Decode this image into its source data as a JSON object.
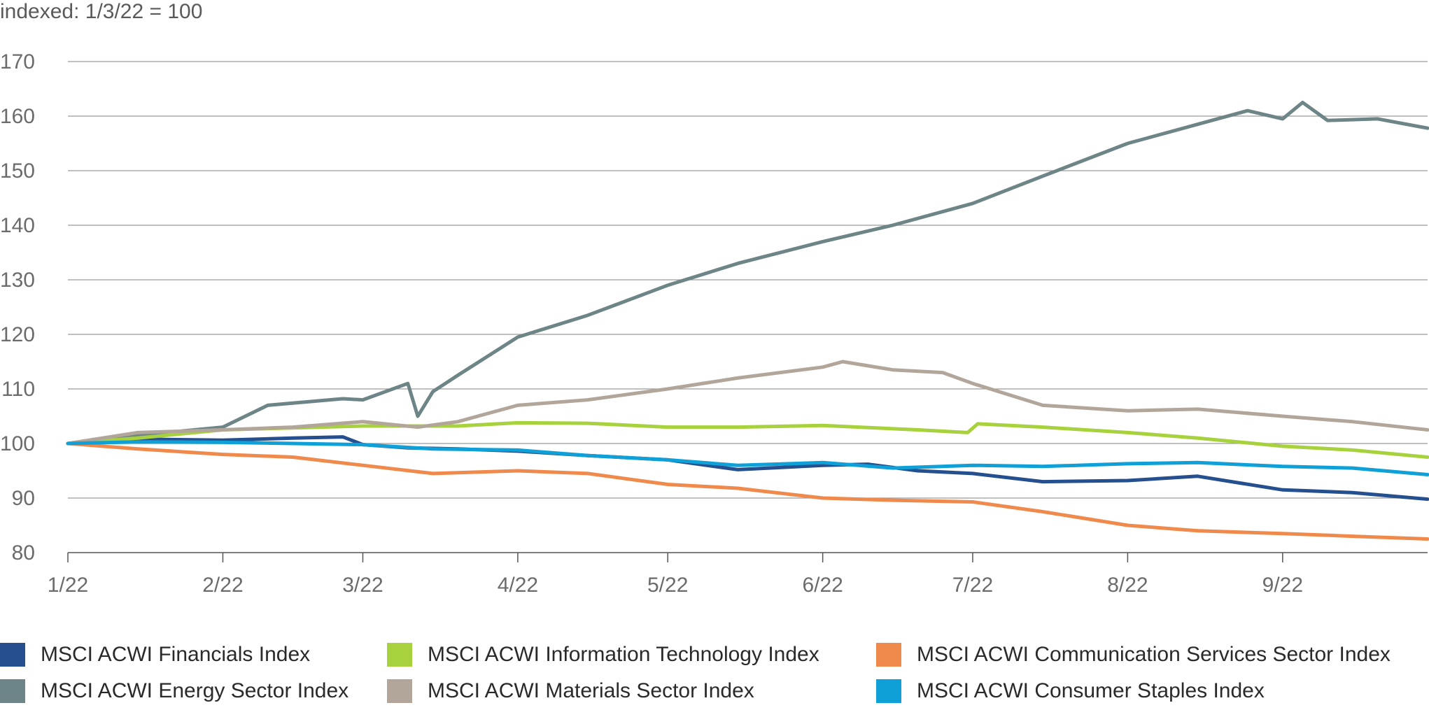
{
  "chart_data": {
    "type": "line",
    "y_axis_note": "indexed: 1/3/22 = 100",
    "title": "",
    "xlabel": "",
    "ylabel": "",
    "ylim": [
      80,
      170
    ],
    "y_ticks": [
      80,
      90,
      100,
      110,
      120,
      130,
      140,
      150,
      160,
      170
    ],
    "x_ticks": [
      {
        "label": "1/22",
        "x": "2022-01-01"
      },
      {
        "label": "2/22",
        "x": "2022-02-01"
      },
      {
        "label": "3/22",
        "x": "2022-03-01"
      },
      {
        "label": "4/22",
        "x": "2022-04-01"
      },
      {
        "label": "5/22",
        "x": "2022-05-01"
      },
      {
        "label": "6/22",
        "x": "2022-06-01"
      },
      {
        "label": "7/22",
        "x": "2022-07-01"
      },
      {
        "label": "8/22",
        "x": "2022-08-01"
      },
      {
        "label": "9/22",
        "x": "2022-09-01"
      }
    ],
    "xlim": [
      "2022-01-01",
      "2022-09-30"
    ],
    "grid": "horizontal",
    "legend_position": "bottom",
    "series": [
      {
        "name": "MSCI ACWI Financials Index",
        "color": "#254f8e",
        "points": [
          [
            "2022-01-01",
            100
          ],
          [
            "2022-01-15",
            100.8
          ],
          [
            "2022-02-01",
            100.6
          ],
          [
            "2022-02-15",
            101.0
          ],
          [
            "2022-02-25",
            101.2
          ],
          [
            "2022-03-01",
            99.8
          ],
          [
            "2022-03-10",
            99.2
          ],
          [
            "2022-03-20",
            99.0
          ],
          [
            "2022-04-01",
            98.6
          ],
          [
            "2022-04-15",
            97.8
          ],
          [
            "2022-05-01",
            97.0
          ],
          [
            "2022-05-15",
            95.2
          ],
          [
            "2022-06-01",
            96.0
          ],
          [
            "2022-06-10",
            96.2
          ],
          [
            "2022-06-20",
            95.0
          ],
          [
            "2022-07-01",
            94.5
          ],
          [
            "2022-07-15",
            93.0
          ],
          [
            "2022-08-01",
            93.2
          ],
          [
            "2022-08-15",
            94.0
          ],
          [
            "2022-09-01",
            91.5
          ],
          [
            "2022-09-15",
            91.0
          ],
          [
            "2022-09-30",
            89.8
          ]
        ]
      },
      {
        "name": "MSCI ACWI Energy Sector Index",
        "color": "#6e8588",
        "points": [
          [
            "2022-01-01",
            100
          ],
          [
            "2022-01-15",
            101.5
          ],
          [
            "2022-02-01",
            103.0
          ],
          [
            "2022-02-10",
            107.0
          ],
          [
            "2022-02-25",
            108.2
          ],
          [
            "2022-03-01",
            108.0
          ],
          [
            "2022-03-10",
            111.0
          ],
          [
            "2022-03-12",
            105.0
          ],
          [
            "2022-03-15",
            109.5
          ],
          [
            "2022-03-20",
            112.5
          ],
          [
            "2022-04-01",
            119.5
          ],
          [
            "2022-04-15",
            123.5
          ],
          [
            "2022-05-01",
            129.0
          ],
          [
            "2022-05-15",
            133.0
          ],
          [
            "2022-06-01",
            137.0
          ],
          [
            "2022-06-15",
            140.0
          ],
          [
            "2022-07-01",
            144.0
          ],
          [
            "2022-07-15",
            149.0
          ],
          [
            "2022-08-01",
            155.0
          ],
          [
            "2022-08-15",
            158.5
          ],
          [
            "2022-08-25",
            161.0
          ],
          [
            "2022-09-01",
            159.5
          ],
          [
            "2022-09-05",
            162.5
          ],
          [
            "2022-09-10",
            159.2
          ],
          [
            "2022-09-20",
            159.5
          ],
          [
            "2022-09-30",
            157.8
          ]
        ]
      },
      {
        "name": "MSCI ACWI Information Technology Index",
        "color": "#a7d13d",
        "points": [
          [
            "2022-01-01",
            100
          ],
          [
            "2022-01-15",
            101.0
          ],
          [
            "2022-02-01",
            102.5
          ],
          [
            "2022-03-01",
            103.2
          ],
          [
            "2022-03-20",
            103.2
          ],
          [
            "2022-04-01",
            103.8
          ],
          [
            "2022-04-15",
            103.7
          ],
          [
            "2022-05-01",
            103.0
          ],
          [
            "2022-05-15",
            103.0
          ],
          [
            "2022-06-01",
            103.3
          ],
          [
            "2022-06-20",
            102.5
          ],
          [
            "2022-06-30",
            102.0
          ],
          [
            "2022-07-02",
            103.6
          ],
          [
            "2022-07-15",
            103.0
          ],
          [
            "2022-08-01",
            102.0
          ],
          [
            "2022-08-15",
            101.0
          ],
          [
            "2022-09-01",
            99.5
          ],
          [
            "2022-09-15",
            98.8
          ],
          [
            "2022-09-30",
            97.5
          ]
        ]
      },
      {
        "name": "MSCI ACWI Materials Sector Index",
        "color": "#b2a69b",
        "points": [
          [
            "2022-01-01",
            100
          ],
          [
            "2022-01-15",
            102.0
          ],
          [
            "2022-02-01",
            102.5
          ],
          [
            "2022-02-15",
            103.0
          ],
          [
            "2022-03-01",
            104.0
          ],
          [
            "2022-03-12",
            103.0
          ],
          [
            "2022-03-20",
            104.0
          ],
          [
            "2022-04-01",
            107.0
          ],
          [
            "2022-04-15",
            108.0
          ],
          [
            "2022-05-01",
            110.0
          ],
          [
            "2022-05-15",
            112.0
          ],
          [
            "2022-06-01",
            114.0
          ],
          [
            "2022-06-05",
            115.0
          ],
          [
            "2022-06-15",
            113.5
          ],
          [
            "2022-06-25",
            113.0
          ],
          [
            "2022-07-01",
            111.0
          ],
          [
            "2022-07-15",
            107.0
          ],
          [
            "2022-08-01",
            106.0
          ],
          [
            "2022-08-15",
            106.3
          ],
          [
            "2022-09-01",
            105.0
          ],
          [
            "2022-09-15",
            104.0
          ],
          [
            "2022-09-30",
            102.5
          ]
        ]
      },
      {
        "name": "MSCI ACWI Communication Services Sector Index",
        "color": "#ef8a4c",
        "points": [
          [
            "2022-01-01",
            100
          ],
          [
            "2022-01-15",
            99.0
          ],
          [
            "2022-02-01",
            98.0
          ],
          [
            "2022-02-15",
            97.5
          ],
          [
            "2022-03-01",
            96.0
          ],
          [
            "2022-03-15",
            94.5
          ],
          [
            "2022-04-01",
            95.0
          ],
          [
            "2022-04-15",
            94.5
          ],
          [
            "2022-05-01",
            92.5
          ],
          [
            "2022-05-15",
            91.8
          ],
          [
            "2022-06-01",
            90.0
          ],
          [
            "2022-06-15",
            89.6
          ],
          [
            "2022-07-01",
            89.3
          ],
          [
            "2022-07-15",
            87.5
          ],
          [
            "2022-08-01",
            85.0
          ],
          [
            "2022-08-15",
            84.0
          ],
          [
            "2022-09-01",
            83.5
          ],
          [
            "2022-09-15",
            83.0
          ],
          [
            "2022-09-30",
            82.5
          ]
        ]
      },
      {
        "name": "MSCI ACWI Consumer Staples Index",
        "color": "#0fa0d8",
        "points": [
          [
            "2022-01-01",
            100
          ],
          [
            "2022-01-15",
            100.3
          ],
          [
            "2022-02-01",
            100.2
          ],
          [
            "2022-03-01",
            99.8
          ],
          [
            "2022-03-15",
            99.0
          ],
          [
            "2022-04-01",
            98.8
          ],
          [
            "2022-04-15",
            97.8
          ],
          [
            "2022-05-01",
            97.0
          ],
          [
            "2022-05-15",
            96.0
          ],
          [
            "2022-06-01",
            96.5
          ],
          [
            "2022-06-15",
            95.5
          ],
          [
            "2022-07-01",
            96.0
          ],
          [
            "2022-07-15",
            95.8
          ],
          [
            "2022-08-01",
            96.3
          ],
          [
            "2022-08-15",
            96.5
          ],
          [
            "2022-09-01",
            95.8
          ],
          [
            "2022-09-15",
            95.5
          ],
          [
            "2022-09-30",
            94.3
          ]
        ]
      }
    ]
  }
}
